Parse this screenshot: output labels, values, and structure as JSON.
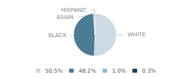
{
  "chart_data": {
    "type": "pie",
    "categories": [
      "WHITE",
      "BLACK",
      "ASIAN",
      "HISPANIC"
    ],
    "values": [
      50.5,
      48.2,
      1.0,
      0.3
    ],
    "value_labels": [
      "50.5%",
      "48.2%",
      "1.0%",
      "0.3%"
    ],
    "colors": [
      "#cdd9e3",
      "#4d7a95",
      "#9ab4c5",
      "#1e3a50"
    ],
    "legend": "bottom"
  }
}
